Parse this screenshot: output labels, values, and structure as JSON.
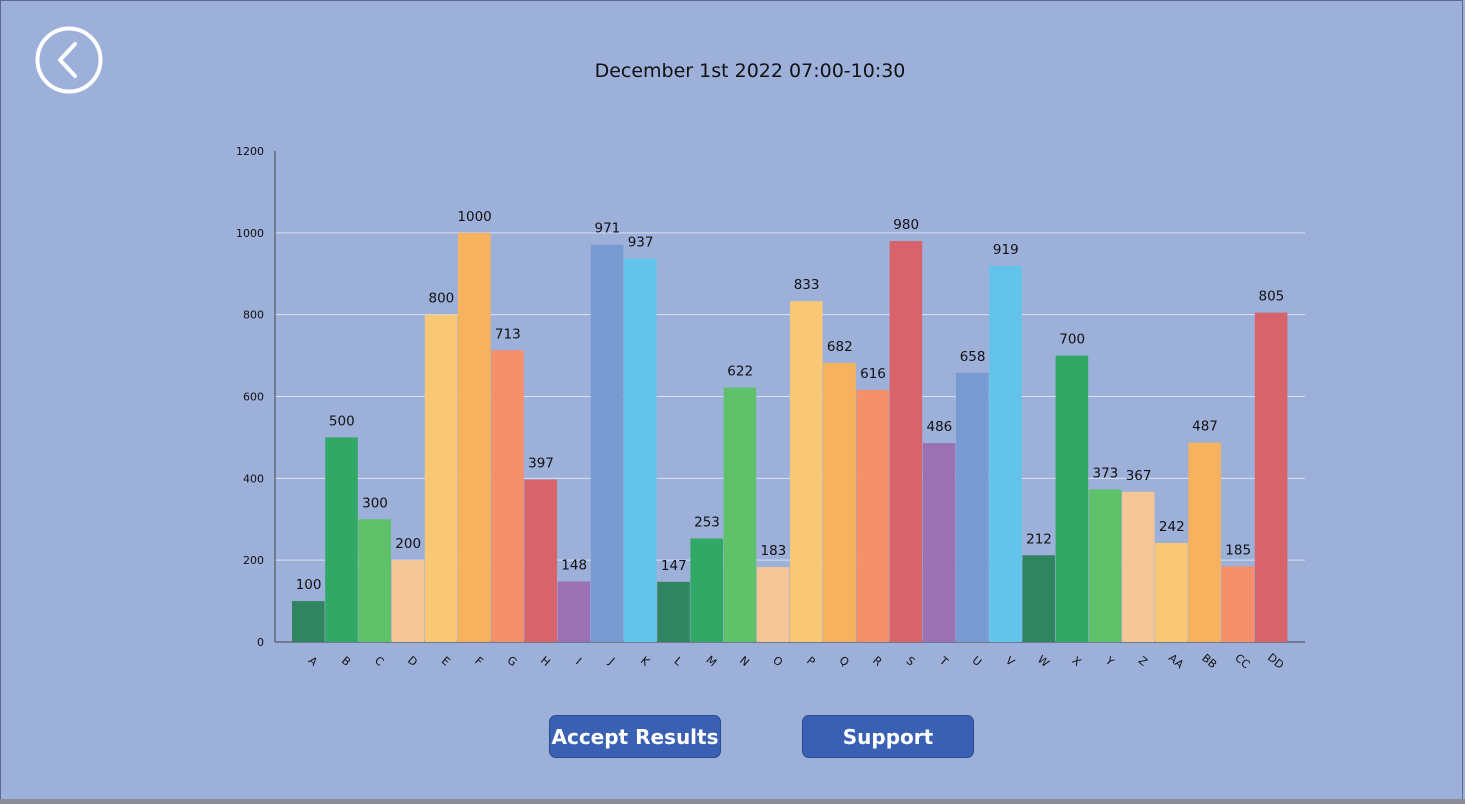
{
  "header": {
    "title": "December 1st 2022 07:00-10:30",
    "back_icon": "chevron-left-circle-icon"
  },
  "actions": {
    "accept_label": "Accept Results",
    "support_label": "Support"
  },
  "chart_data": {
    "type": "bar",
    "title": "",
    "xlabel": "",
    "ylabel": "",
    "ylim": [
      0,
      1200
    ],
    "yticks": [
      0,
      200,
      400,
      600,
      800,
      1000,
      1200
    ],
    "grid": true,
    "categories": [
      "A",
      "B",
      "C",
      "D",
      "E",
      "F",
      "G",
      "H",
      "I",
      "J",
      "K",
      "L",
      "M",
      "N",
      "O",
      "P",
      "Q",
      "R",
      "S",
      "T",
      "U",
      "V",
      "W",
      "X",
      "Y",
      "Z",
      "AA",
      "BB",
      "CC",
      "DD"
    ],
    "values": [
      100,
      500,
      300,
      200,
      800,
      1000,
      713,
      397,
      148,
      971,
      937,
      147,
      253,
      622,
      183,
      833,
      682,
      616,
      980,
      486,
      658,
      919,
      212,
      700,
      373,
      367,
      242,
      487,
      185,
      805
    ],
    "colors": [
      "#318460",
      "#31a865",
      "#5fc26b",
      "#f4c595",
      "#f8c876",
      "#f6b25c",
      "#f5906a",
      "#d6646a",
      "#9a72b3",
      "#779bd0",
      "#62c4ea"
    ]
  }
}
